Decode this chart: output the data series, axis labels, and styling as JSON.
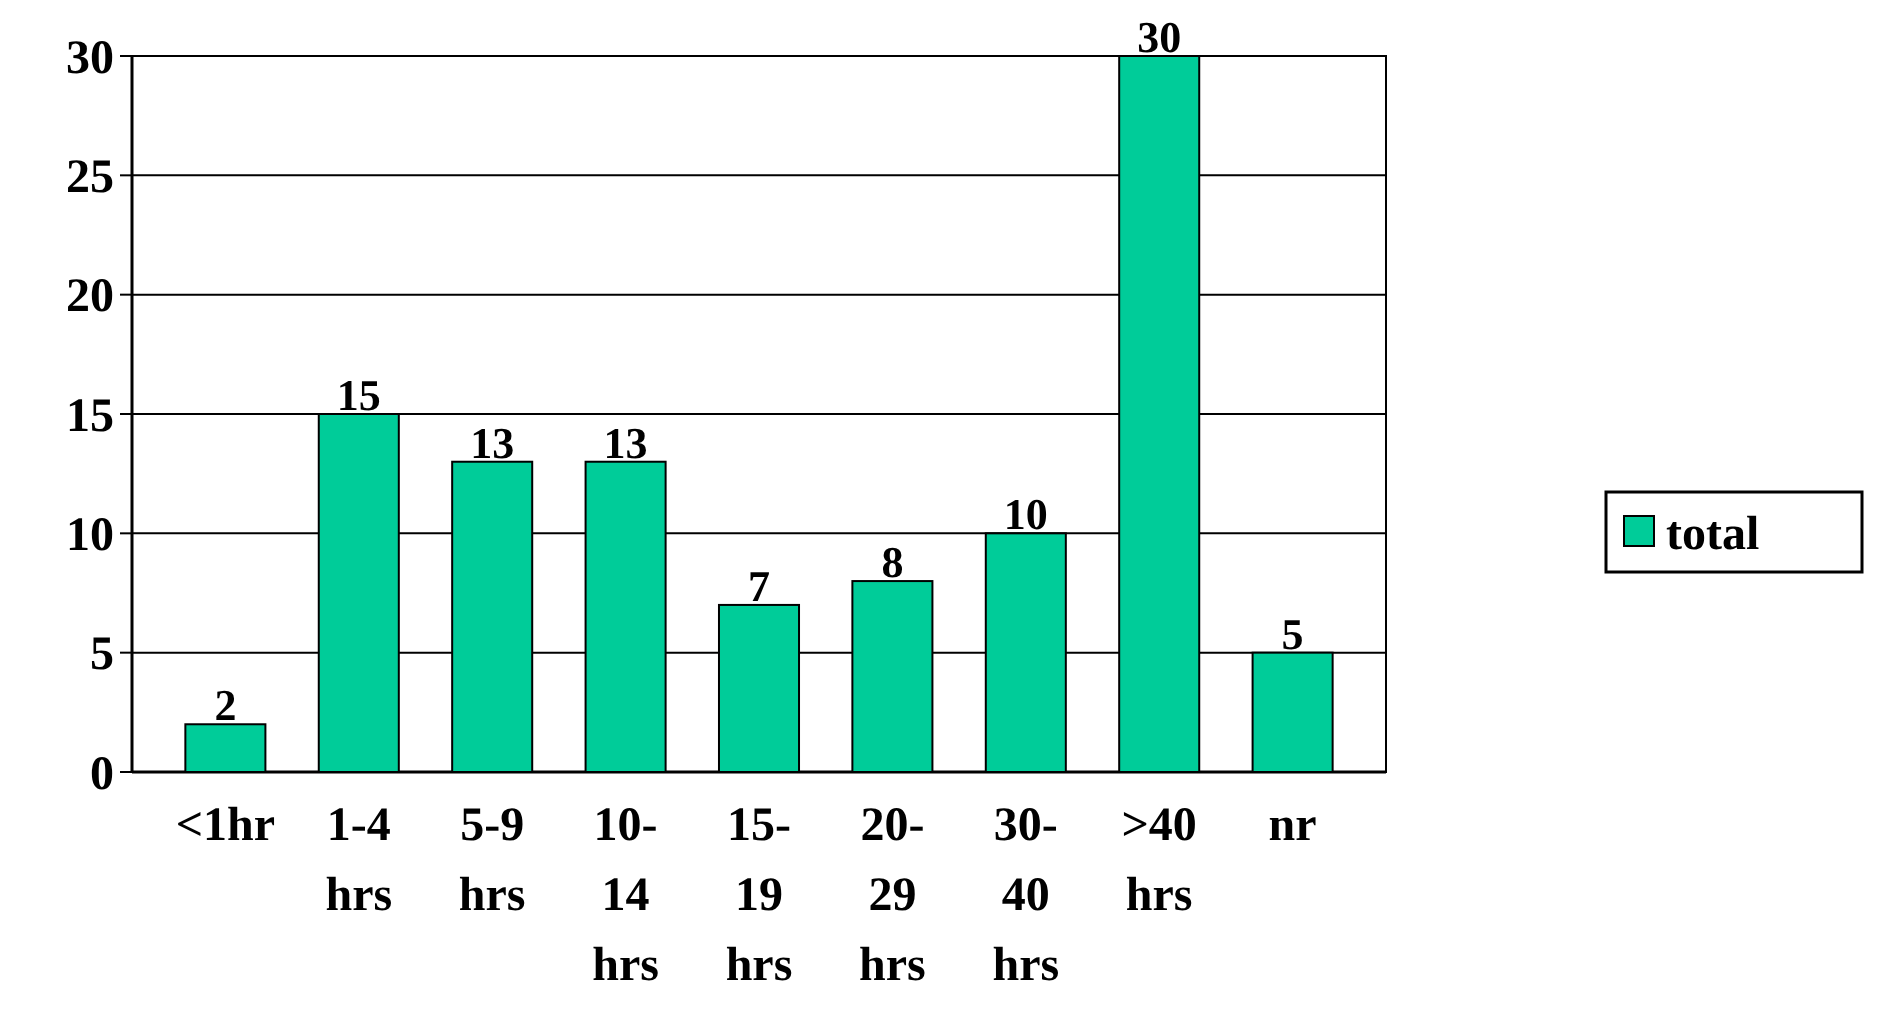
{
  "chart_data": {
    "type": "bar",
    "categories": [
      "<1hr",
      "1-4 hrs",
      "5-9 hrs",
      "10-14 hrs",
      "15-19 hrs",
      "20-29 hrs",
      "30-40 hrs",
      ">40 hrs",
      "nr"
    ],
    "series": [
      {
        "name": "total",
        "color": "#00cc99",
        "values": [
          2,
          15,
          13,
          13,
          7,
          8,
          10,
          30,
          5
        ]
      }
    ],
    "ylim": [
      0,
      30
    ],
    "yticks": [
      0,
      5,
      10,
      15,
      20,
      25,
      30
    ],
    "grid": "y",
    "legend": "right",
    "data_labels": true
  }
}
